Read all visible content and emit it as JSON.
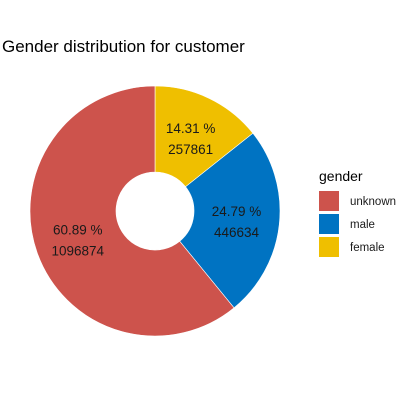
{
  "chart_data": {
    "type": "pie",
    "style": "donut",
    "title": "Gender distribution for customer",
    "legend_title": "gender",
    "legend_position": "right",
    "slices": [
      {
        "name": "female",
        "percent_label": "14.31 %",
        "count_label": "257861",
        "value": 257861,
        "color": "#EFBF00"
      },
      {
        "name": "male",
        "percent_label": "24.79 %",
        "count_label": "446634",
        "value": 446634,
        "color": "#0073C2"
      },
      {
        "name": "unknown",
        "percent_label": "60.89 %",
        "count_label": "1096874",
        "value": 1096874,
        "color": "#CD534C"
      }
    ],
    "legend_order": [
      "unknown",
      "male",
      "female"
    ]
  }
}
